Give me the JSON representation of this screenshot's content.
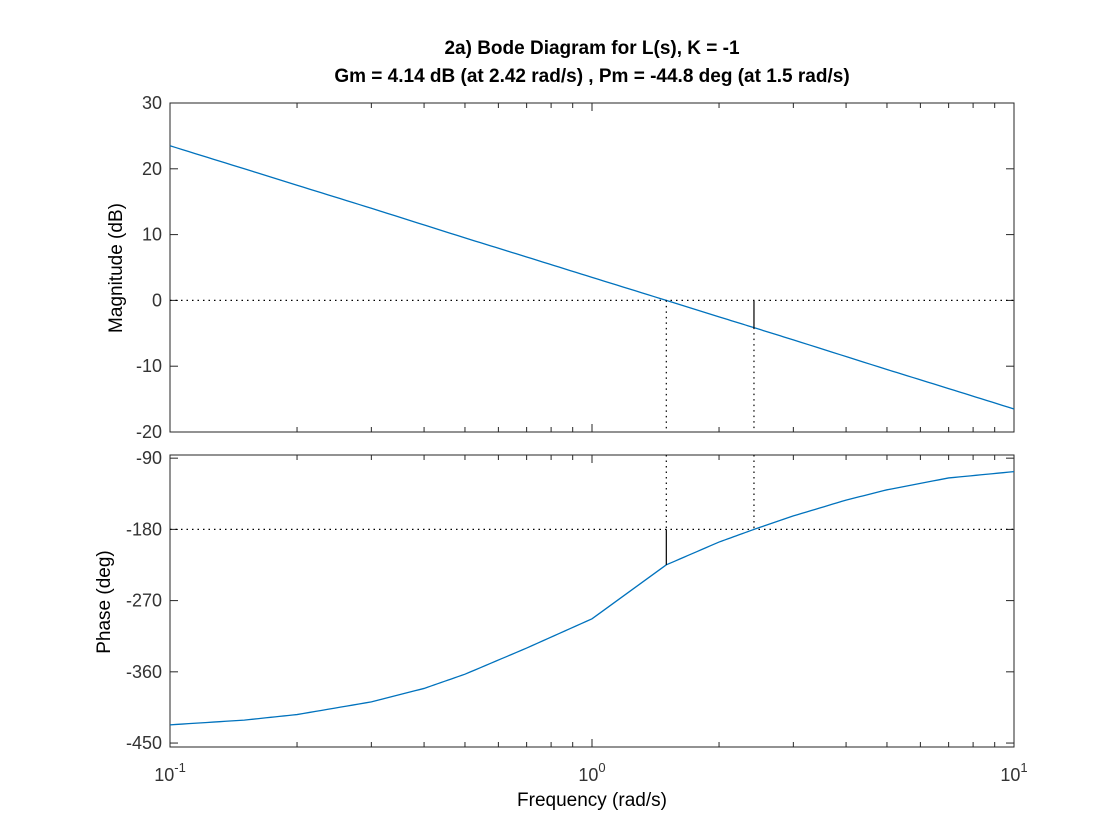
{
  "chart_data": {
    "type": "line",
    "title": "2a) Bode Diagram for L(s), K = -1",
    "subtitle": "Gm = 4.14 dB (at 2.42 rad/s) ,  Pm = -44.8 deg (at 1.5 rad/s)",
    "xlabel": "Frequency  (rad/s)",
    "xscale": "log",
    "xlim": [
      0.1,
      10
    ],
    "x_ticks": [
      {
        "base": "10",
        "exp": "-1"
      },
      {
        "base": "10",
        "exp": "0"
      },
      {
        "base": "10",
        "exp": "1"
      }
    ],
    "series_color": "#0072BD",
    "grid": false,
    "magnitude": {
      "ylabel": "Magnitude (dB)",
      "ylim": [
        -20,
        30
      ],
      "y_ticks": [
        "30",
        "20",
        "10",
        "0",
        "-10",
        "-20"
      ],
      "series": [
        {
          "x": [
            0.1,
            0.15,
            0.2,
            0.3,
            0.5,
            0.7,
            1.0,
            1.5,
            2.0,
            2.42,
            3.0,
            5.0,
            7.0,
            10.0
          ],
          "values": [
            23.5,
            20.0,
            17.5,
            14.0,
            9.5,
            6.6,
            3.5,
            0.0,
            -2.5,
            -4.14,
            -6.0,
            -10.5,
            -13.4,
            -16.5
          ]
        }
      ],
      "reference_line": 0
    },
    "phase": {
      "ylabel": "Phase (deg)",
      "ylim": [
        -455,
        -86
      ],
      "y_ticks": [
        "-90",
        "-180",
        "-270",
        "-360",
        "-450"
      ],
      "series": [
        {
          "x": [
            0.1,
            0.15,
            0.2,
            0.3,
            0.4,
            0.5,
            0.7,
            1.0,
            1.5,
            2.0,
            2.42,
            3.0,
            4.0,
            5.0,
            7.0,
            10.0
          ],
          "values": [
            -427,
            -421,
            -414,
            -398,
            -381,
            -363,
            -330,
            -293,
            -224.8,
            -196,
            -180,
            -163,
            -143,
            -130,
            -115,
            -107
          ]
        }
      ],
      "reference_line": -180
    },
    "gain_margin": {
      "value_db": 4.14,
      "frequency": 2.42
    },
    "phase_margin": {
      "value_deg": -44.8,
      "frequency": 1.5
    }
  }
}
